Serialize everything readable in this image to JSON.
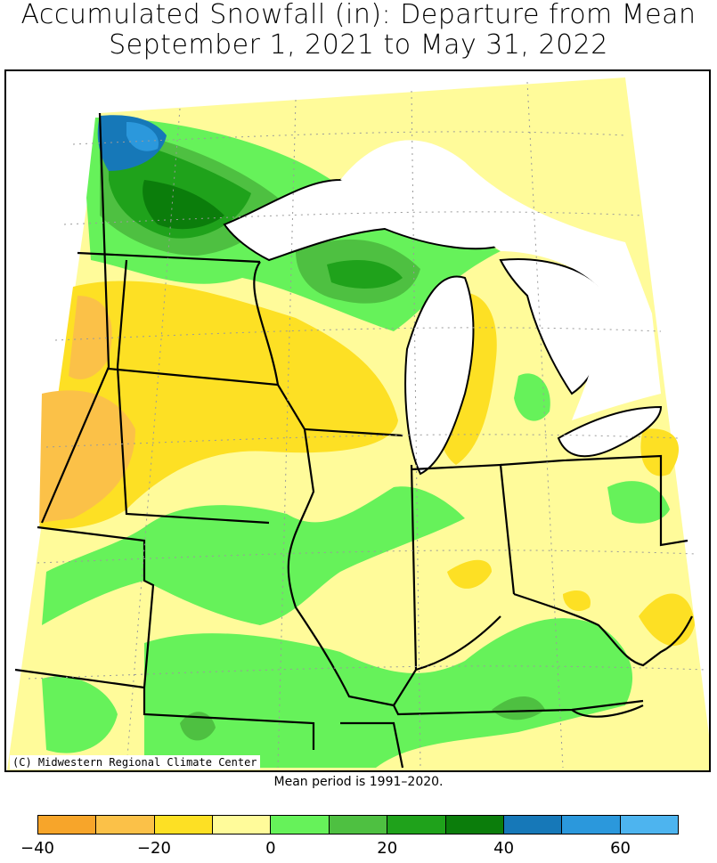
{
  "title_line1": "Accumulated Snowfall (in): Departure from Mean",
  "title_line2": "September 1, 2021 to May 31, 2022",
  "copyright": "(C) Midwestern Regional Climate Center",
  "mean_period": "Mean period is 1991–2020.",
  "legend": {
    "bins": [
      {
        "range": "-40 to -30",
        "color": "#f7a52a"
      },
      {
        "range": "-30 to -20",
        "color": "#fbc148"
      },
      {
        "range": "-20 to -10",
        "color": "#fde024"
      },
      {
        "range": "-10 to 0",
        "color": "#fffb9a"
      },
      {
        "range": "0 to 10",
        "color": "#66f25a"
      },
      {
        "range": "10 to 20",
        "color": "#4ec041"
      },
      {
        "range": "20 to 30",
        "color": "#1fa21b"
      },
      {
        "range": "30 to 40",
        "color": "#0b7d0b"
      },
      {
        "range": "40 to 50",
        "color": "#1678b8"
      },
      {
        "range": "50 to 60",
        "color": "#2b98dc"
      },
      {
        "range": "60 to 70",
        "color": "#4db4ef"
      }
    ],
    "tick_labels": [
      "−40",
      "−20",
      "0",
      "20",
      "40",
      "60"
    ]
  }
}
